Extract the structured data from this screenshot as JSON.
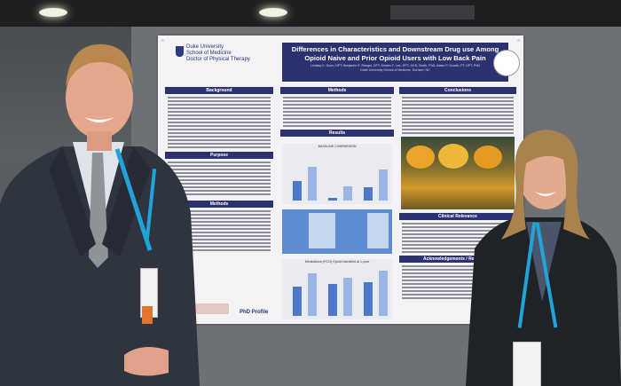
{
  "poster": {
    "logo_text": "Duke University\nSchool of Medicine\nDoctor of Physical Therapy",
    "title": "Differences in Characteristics and Downstream Drug use Among Opioid Naive and Prior Opioid Users with Low Back Pain",
    "authors": "Lindsay K. Dunn, DPT; Benjamin E. Rangel, DPT; Kristen F. Lee, DPT; Jill B. Smith, PhD; Adam P. Goode, PT, DPT, PhD",
    "affiliation": "Duke University School of Medicine, Durham, NC",
    "sections": {
      "background": "Background",
      "purpose": "Purpose",
      "methods_left": "Methods",
      "methods_mid": "Methods",
      "results": "Results",
      "conclusions": "Conclusions",
      "clinical_relevance": "Clinical Relevance",
      "acknowledgements": "Acknowledgements / References"
    },
    "chart1_title": "BASELINE COMPARISON",
    "chart2_title": "Medications (PCO) Opioid Identified at 1-year",
    "footer_logo": "PhD Profile"
  },
  "chart_bars": {
    "chart1": [
      {
        "series": "a",
        "value": 0.4
      },
      {
        "series": "b",
        "value": 0.7
      },
      {
        "series": "a",
        "value": 0.05
      },
      {
        "series": "b",
        "value": 0.3
      },
      {
        "series": "a",
        "value": 0.28
      },
      {
        "series": "b",
        "value": 0.65
      }
    ],
    "chart2": [
      {
        "series": "a",
        "value": 0.62
      },
      {
        "series": "b",
        "value": 0.88
      },
      {
        "series": "a",
        "value": 0.66
      },
      {
        "series": "b",
        "value": 0.8
      },
      {
        "series": "a",
        "value": 0.7
      },
      {
        "series": "b",
        "value": 0.95
      }
    ]
  },
  "colors": {
    "poster_header": "#2c3270",
    "bar_a": "#4f79c6",
    "bar_b": "#9bb6e6",
    "lanyard": "#21a3d8"
  }
}
